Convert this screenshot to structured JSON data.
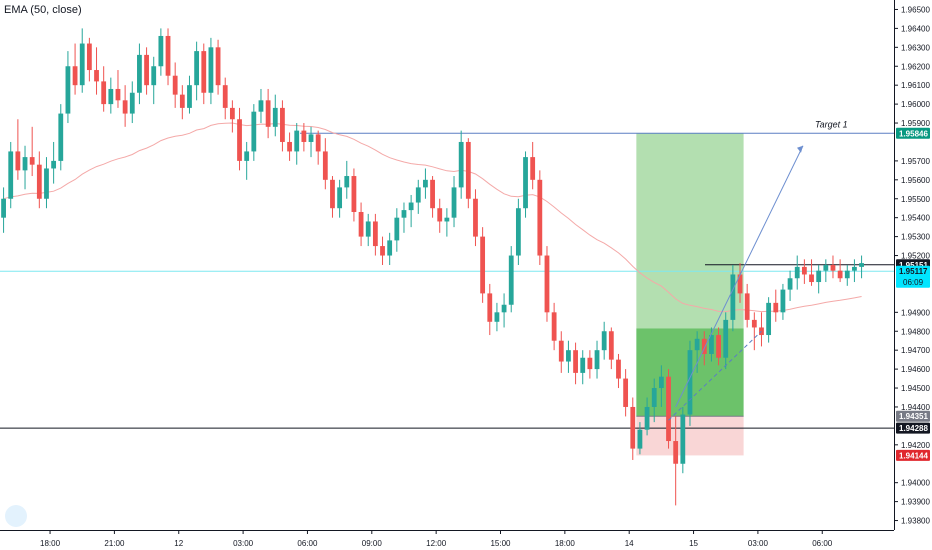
{
  "indicator_label": "EMA (50, close)",
  "chart_data": {
    "type": "candlestick",
    "y_ticks": [
      "1.96500",
      "1.96400",
      "1.96300",
      "1.96200",
      "1.96100",
      "1.96000",
      "1.95900",
      "1.95700",
      "1.95600",
      "1.95500",
      "1.95400",
      "1.95300",
      "1.95200",
      "1.94900",
      "1.94800",
      "1.94700",
      "1.94600",
      "1.94500",
      "1.94400",
      "1.94200",
      "1.94000",
      "1.93900",
      "1.93800"
    ],
    "y_tick_values": [
      1.965,
      1.964,
      1.963,
      1.962,
      1.961,
      1.96,
      1.959,
      1.957,
      1.956,
      1.955,
      1.954,
      1.953,
      1.952,
      1.949,
      1.948,
      1.947,
      1.946,
      1.945,
      1.944,
      1.942,
      1.94,
      1.939,
      1.938
    ],
    "ylim": [
      1.9375,
      1.9655
    ],
    "x_ticks": [
      "18:00",
      "21:00",
      "12",
      "03:00",
      "06:00",
      "09:00",
      "12:00",
      "15:00",
      "18:00",
      "14",
      "15",
      "03:00",
      "06:00"
    ],
    "x_tick_index": [
      6.5,
      15.5,
      24.5,
      33.5,
      42.5,
      51.5,
      60.5,
      69.5,
      78.5,
      87.5,
      96.5,
      105.5,
      114.5
    ],
    "bar_count": 126,
    "up_color": "#26a69a",
    "down_color": "#ef5350",
    "ema_color": "#f4a9a8",
    "price_labels": [
      {
        "text": "1.95846",
        "value": 1.95846,
        "bg": "#089981",
        "fg": "#ffffff"
      },
      {
        "text": "1.95151",
        "value": 1.95151,
        "bg": "#131722",
        "fg": "#ffffff"
      },
      {
        "text": "1.95117",
        "value": 1.95117,
        "bg": "#00e5ff",
        "fg": "#131722",
        "sub": "06:09"
      },
      {
        "text": "1.94351",
        "value": 1.94351,
        "bg": "#787b86",
        "fg": "#ffffff"
      },
      {
        "text": "1.94288",
        "value": 1.94288,
        "bg": "#131722",
        "fg": "#ffffff"
      },
      {
        "text": "1.94144",
        "value": 1.94144,
        "bg": "#e0282e",
        "fg": "#ffffff"
      }
    ],
    "levels": {
      "target_line": 1.95846,
      "upper_black": 1.95151,
      "current_cyan": 1.95117,
      "lower_black": 1.94288
    },
    "annotations": [
      {
        "text": "Target 1"
      }
    ],
    "position": {
      "entry": 1.94815,
      "target": 1.95846,
      "stop": 1.94144,
      "entry_shade": 1.94351,
      "start_index": 89,
      "end_index": 103
    },
    "ohlc": [
      [
        1.954,
        1.9556,
        1.9532,
        1.955
      ],
      [
        1.955,
        1.958,
        1.9545,
        1.9575
      ],
      [
        1.9575,
        1.9592,
        1.956,
        1.9565
      ],
      [
        1.9565,
        1.9578,
        1.9555,
        1.9572
      ],
      [
        1.9572,
        1.9588,
        1.9562,
        1.9568
      ],
      [
        1.9568,
        1.9575,
        1.9545,
        1.955
      ],
      [
        1.955,
        1.9572,
        1.9545,
        1.9566
      ],
      [
        1.9566,
        1.958,
        1.9558,
        1.957
      ],
      [
        1.957,
        1.96,
        1.9565,
        1.9595
      ],
      [
        1.9595,
        1.9628,
        1.959,
        1.962
      ],
      [
        1.962,
        1.9632,
        1.9605,
        1.961
      ],
      [
        1.961,
        1.964,
        1.9606,
        1.9632
      ],
      [
        1.9632,
        1.9635,
        1.9612,
        1.9618
      ],
      [
        1.9618,
        1.963,
        1.9605,
        1.9612
      ],
      [
        1.9612,
        1.962,
        1.9596,
        1.96
      ],
      [
        1.96,
        1.9614,
        1.9595,
        1.9608
      ],
      [
        1.9608,
        1.9618,
        1.9598,
        1.9602
      ],
      [
        1.9602,
        1.961,
        1.9588,
        1.9595
      ],
      [
        1.9595,
        1.9612,
        1.959,
        1.9606
      ],
      [
        1.9606,
        1.9632,
        1.96,
        1.9626
      ],
      [
        1.9626,
        1.963,
        1.9605,
        1.961
      ],
      [
        1.961,
        1.9625,
        1.96,
        1.962
      ],
      [
        1.962,
        1.964,
        1.9615,
        1.9636
      ],
      [
        1.9636,
        1.964,
        1.961,
        1.9615
      ],
      [
        1.9615,
        1.9622,
        1.9598,
        1.9605
      ],
      [
        1.9605,
        1.961,
        1.9592,
        1.9598
      ],
      [
        1.9598,
        1.9615,
        1.9595,
        1.961
      ],
      [
        1.961,
        1.9633,
        1.9602,
        1.9628
      ],
      [
        1.9628,
        1.9632,
        1.96,
        1.9606
      ],
      [
        1.9606,
        1.9635,
        1.96,
        1.963
      ],
      [
        1.963,
        1.9634,
        1.9605,
        1.961
      ],
      [
        1.961,
        1.9614,
        1.9592,
        1.9598
      ],
      [
        1.9598,
        1.9602,
        1.9585,
        1.9592
      ],
      [
        1.9592,
        1.9598,
        1.9565,
        1.957
      ],
      [
        1.957,
        1.958,
        1.956,
        1.9575
      ],
      [
        1.9575,
        1.96,
        1.957,
        1.9596
      ],
      [
        1.9596,
        1.9608,
        1.959,
        1.9602
      ],
      [
        1.9602,
        1.9608,
        1.9582,
        1.9588
      ],
      [
        1.9588,
        1.9605,
        1.9583,
        1.9598
      ],
      [
        1.9598,
        1.9602,
        1.9575,
        1.958
      ],
      [
        1.958,
        1.9585,
        1.957,
        1.9575
      ],
      [
        1.9575,
        1.959,
        1.9568,
        1.9586
      ],
      [
        1.9586,
        1.959,
        1.9575,
        1.958
      ],
      [
        1.958,
        1.9588,
        1.9572,
        1.9584
      ],
      [
        1.9584,
        1.9586,
        1.9568,
        1.9575
      ],
      [
        1.9575,
        1.9582,
        1.9555,
        1.956
      ],
      [
        1.956,
        1.9562,
        1.954,
        1.9545
      ],
      [
        1.9545,
        1.956,
        1.954,
        1.9556
      ],
      [
        1.9556,
        1.957,
        1.955,
        1.9562
      ],
      [
        1.9562,
        1.9566,
        1.9538,
        1.9543
      ],
      [
        1.9543,
        1.9548,
        1.9525,
        1.953
      ],
      [
        1.953,
        1.9542,
        1.9525,
        1.9538
      ],
      [
        1.9538,
        1.9542,
        1.952,
        1.9525
      ],
      [
        1.9525,
        1.953,
        1.9515,
        1.952
      ],
      [
        1.952,
        1.9532,
        1.9515,
        1.9528
      ],
      [
        1.9528,
        1.9545,
        1.9522,
        1.954
      ],
      [
        1.954,
        1.9548,
        1.9532,
        1.9544
      ],
      [
        1.9544,
        1.9552,
        1.9535,
        1.9548
      ],
      [
        1.9548,
        1.956,
        1.9542,
        1.9556
      ],
      [
        1.9556,
        1.9566,
        1.955,
        1.956
      ],
      [
        1.956,
        1.9562,
        1.954,
        1.9545
      ],
      [
        1.9545,
        1.955,
        1.9532,
        1.9538
      ],
      [
        1.9538,
        1.9545,
        1.953,
        1.954
      ],
      [
        1.954,
        1.9562,
        1.9535,
        1.9556
      ],
      [
        1.9556,
        1.9586,
        1.955,
        1.958
      ],
      [
        1.958,
        1.9582,
        1.9545,
        1.955
      ],
      [
        1.955,
        1.9555,
        1.9525,
        1.953
      ],
      [
        1.953,
        1.9535,
        1.9495,
        1.95
      ],
      [
        1.95,
        1.9505,
        1.9478,
        1.9485
      ],
      [
        1.9485,
        1.9495,
        1.948,
        1.949
      ],
      [
        1.949,
        1.95,
        1.9482,
        1.9494
      ],
      [
        1.9494,
        1.9525,
        1.949,
        1.952
      ],
      [
        1.952,
        1.955,
        1.9515,
        1.9545
      ],
      [
        1.9545,
        1.9575,
        1.954,
        1.9572
      ],
      [
        1.9572,
        1.958,
        1.9555,
        1.956
      ],
      [
        1.956,
        1.9565,
        1.9515,
        1.952
      ],
      [
        1.952,
        1.9525,
        1.9485,
        1.949
      ],
      [
        1.949,
        1.9495,
        1.947,
        1.9475
      ],
      [
        1.9475,
        1.948,
        1.9458,
        1.9464
      ],
      [
        1.9464,
        1.9475,
        1.9458,
        1.947
      ],
      [
        1.947,
        1.9474,
        1.9452,
        1.9458
      ],
      [
        1.9458,
        1.947,
        1.9452,
        1.9466
      ],
      [
        1.9466,
        1.947,
        1.9455,
        1.946
      ],
      [
        1.946,
        1.9475,
        1.9455,
        1.947
      ],
      [
        1.947,
        1.9485,
        1.9465,
        1.948
      ],
      [
        1.948,
        1.9482,
        1.946,
        1.9465
      ],
      [
        1.9465,
        1.9468,
        1.945,
        1.9455
      ],
      [
        1.9455,
        1.946,
        1.9435,
        1.944
      ],
      [
        1.944,
        1.9445,
        1.9412,
        1.9418
      ],
      [
        1.9418,
        1.9432,
        1.9415,
        1.9428
      ],
      [
        1.9428,
        1.9445,
        1.9425,
        1.944
      ],
      [
        1.944,
        1.9455,
        1.9432,
        1.945
      ],
      [
        1.945,
        1.9462,
        1.944,
        1.9456
      ],
      [
        1.9456,
        1.946,
        1.9418,
        1.9422
      ],
      [
        1.9422,
        1.9435,
        1.9388,
        1.941
      ],
      [
        1.941,
        1.944,
        1.9405,
        1.9436
      ],
      [
        1.9436,
        1.9475,
        1.943,
        1.947
      ],
      [
        1.947,
        1.948,
        1.9458,
        1.9476
      ],
      [
        1.9476,
        1.948,
        1.9462,
        1.9468
      ],
      [
        1.9468,
        1.9482,
        1.9464,
        1.9478
      ],
      [
        1.9478,
        1.9482,
        1.9462,
        1.9466
      ],
      [
        1.9466,
        1.949,
        1.946,
        1.9486
      ],
      [
        1.9486,
        1.9515,
        1.948,
        1.951
      ],
      [
        1.951,
        1.9516,
        1.9495,
        1.95
      ],
      [
        1.95,
        1.9505,
        1.9482,
        1.9486
      ],
      [
        1.9486,
        1.949,
        1.947,
        1.9482
      ],
      [
        1.9482,
        1.949,
        1.9472,
        1.9478
      ],
      [
        1.9478,
        1.9498,
        1.9474,
        1.9495
      ],
      [
        1.9495,
        1.9502,
        1.9485,
        1.949
      ],
      [
        1.949,
        1.9505,
        1.9486,
        1.9502
      ],
      [
        1.9502,
        1.9512,
        1.9496,
        1.9508
      ],
      [
        1.9508,
        1.952,
        1.9502,
        1.9514
      ],
      [
        1.9514,
        1.9518,
        1.9505,
        1.951
      ],
      [
        1.951,
        1.9518,
        1.9504,
        1.9506
      ],
      [
        1.9506,
        1.9515,
        1.95,
        1.9512
      ],
      [
        1.9512,
        1.9518,
        1.9506,
        1.9515
      ],
      [
        1.9515,
        1.952,
        1.9508,
        1.9512
      ],
      [
        1.9512,
        1.9518,
        1.9506,
        1.9508
      ],
      [
        1.9508,
        1.9515,
        1.9504,
        1.9512
      ],
      [
        1.9512,
        1.9518,
        1.9506,
        1.9514
      ],
      [
        1.9514,
        1.952,
        1.9508,
        1.9516
      ]
    ]
  }
}
